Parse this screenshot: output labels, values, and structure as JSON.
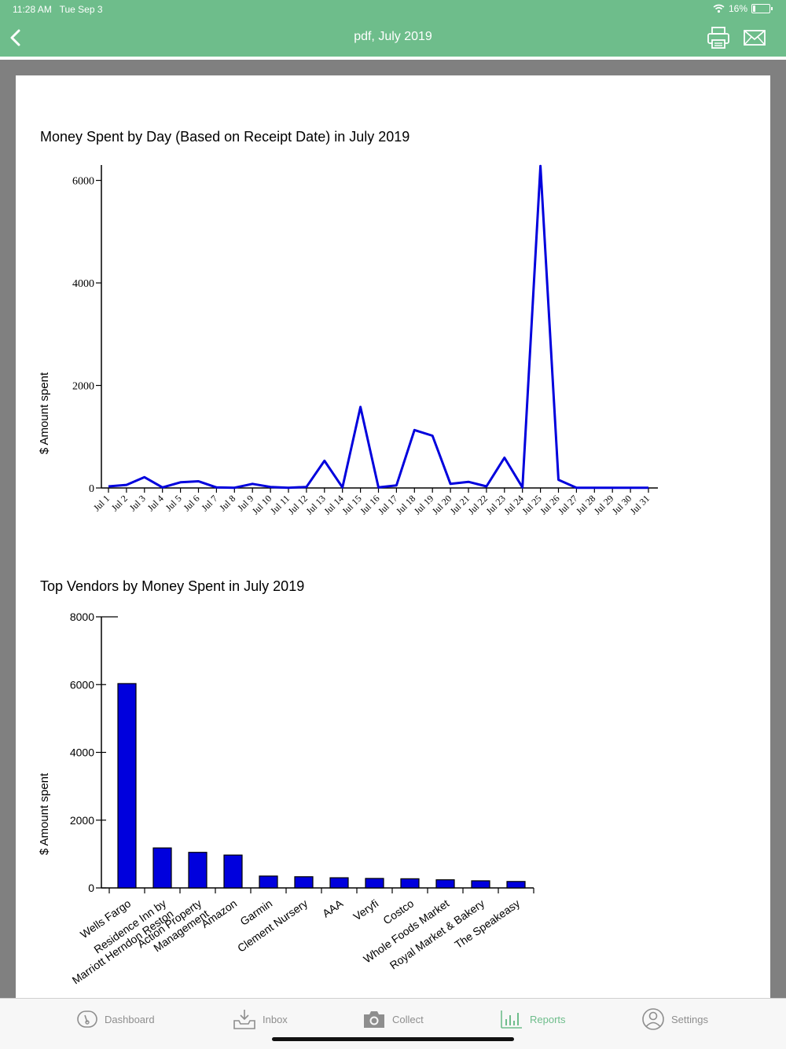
{
  "status": {
    "time": "11:28 AM",
    "date": "Tue Sep 3",
    "battery": "16%",
    "battery_level": 0.16
  },
  "nav": {
    "title": "pdf, July 2019",
    "back_icon": "chevron-left-icon",
    "print_icon": "printer-icon",
    "mail_icon": "envelope-icon"
  },
  "chart_data": [
    {
      "type": "line",
      "title": "Money Spent by Day (Based on Receipt Date) in July 2019",
      "ylabel": "$ Amount spent",
      "ylim": [
        0,
        6300
      ],
      "yticks": [
        0,
        2000,
        4000,
        6000
      ],
      "categories": [
        "Jul 1",
        "Jul 2",
        "Jul 3",
        "Jul 4",
        "Jul 5",
        "Jul 6",
        "Jul 7",
        "Jul 8",
        "Jul 9",
        "Jul 10",
        "Jul 11",
        "Jul 12",
        "Jul 13",
        "Jul 14",
        "Jul 15",
        "Jul 16",
        "Jul 17",
        "Jul 18",
        "Jul 19",
        "Jul 20",
        "Jul 21",
        "Jul 22",
        "Jul 23",
        "Jul 24",
        "Jul 25",
        "Jul 26",
        "Jul 27",
        "Jul 28",
        "Jul 29",
        "Jul 30",
        "Jul 31"
      ],
      "values": [
        30,
        60,
        210,
        10,
        110,
        130,
        10,
        5,
        80,
        20,
        5,
        20,
        530,
        10,
        1580,
        10,
        50,
        1130,
        1020,
        80,
        120,
        30,
        590,
        10,
        6280,
        160,
        5,
        5,
        5,
        5,
        5
      ],
      "color": "#0000dd"
    },
    {
      "type": "bar",
      "title": "Top Vendors by Money Spent in July 2019",
      "ylabel": "$ Amount spent",
      "ylim": [
        0,
        8000
      ],
      "yticks": [
        0,
        2000,
        4000,
        6000,
        8000
      ],
      "categories": [
        "Wells Fargo",
        "Residence Inn by\nMarriott Herndon Reston",
        "Action Property\nManagement",
        "Amazon",
        "Garmin",
        "Clement Nursery",
        "AAA",
        "Veryfi",
        "Costco",
        "Whole Foods Market",
        "Royal Market & Bakery",
        "The Speakeasy"
      ],
      "values": [
        6030,
        1180,
        1050,
        970,
        350,
        330,
        300,
        280,
        270,
        240,
        210,
        190
      ],
      "color": "#0000dd"
    }
  ],
  "tabs": [
    {
      "label": "Dashboard",
      "icon": "dashboard-gauge-icon",
      "active": false
    },
    {
      "label": "Inbox",
      "icon": "inbox-tray-icon",
      "active": false
    },
    {
      "label": "Collect",
      "icon": "camera-icon",
      "active": false
    },
    {
      "label": "Reports",
      "icon": "bar-chart-icon",
      "active": true
    },
    {
      "label": "Settings",
      "icon": "user-circle-icon",
      "active": false
    }
  ]
}
